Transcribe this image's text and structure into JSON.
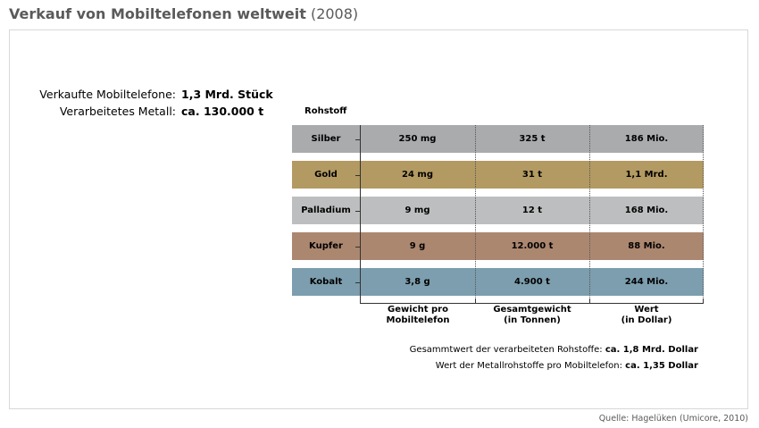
{
  "title": {
    "main": "Verkauf von Mobiltelefonen weltweit",
    "year": "(2008)"
  },
  "summary": {
    "sold_label": "Verkaufte Mobiltelefone:",
    "sold_value": "1,3 Mrd. Stück",
    "metal_label": "Verarbeitetes Metall:",
    "metal_value": "ca. 130.000 t"
  },
  "chart_data": {
    "type": "table",
    "row_header": "Rohstoff",
    "columns": [
      "Gewicht pro\nMobiltelefon",
      "Gesamtgewicht\n(in Tonnen)",
      "Wert\n(in Dollar)"
    ],
    "rows": [
      {
        "name": "Silber",
        "color": "#a9abad",
        "values": [
          "250 mg",
          "325 t",
          "186 Mio."
        ]
      },
      {
        "name": "Gold",
        "color": "#b39a62",
        "values": [
          "24 mg",
          "31 t",
          "1,1 Mrd."
        ]
      },
      {
        "name": "Palladium",
        "color": "#bdbebf",
        "values": [
          "9 mg",
          "12 t",
          "168 Mio."
        ]
      },
      {
        "name": "Kupfer",
        "color": "#ac8770",
        "values": [
          "9 g",
          "12.000 t",
          "88 Mio."
        ]
      },
      {
        "name": "Kobalt",
        "color": "#7c9eae",
        "values": [
          "3,8 g",
          "4.900 t",
          "244 Mio."
        ]
      }
    ]
  },
  "footer": {
    "total_label": "Gesammtwert der verarbeiteten Rohstoffe:",
    "total_value": "ca. 1,8 Mrd. Dollar",
    "per_phone_label": "Wert der Metallrohstoffe pro Mobiltelefon:",
    "per_phone_value": "ca. 1,35 Dollar"
  },
  "source": "Quelle: Hagelüken (Umicore, 2010)"
}
